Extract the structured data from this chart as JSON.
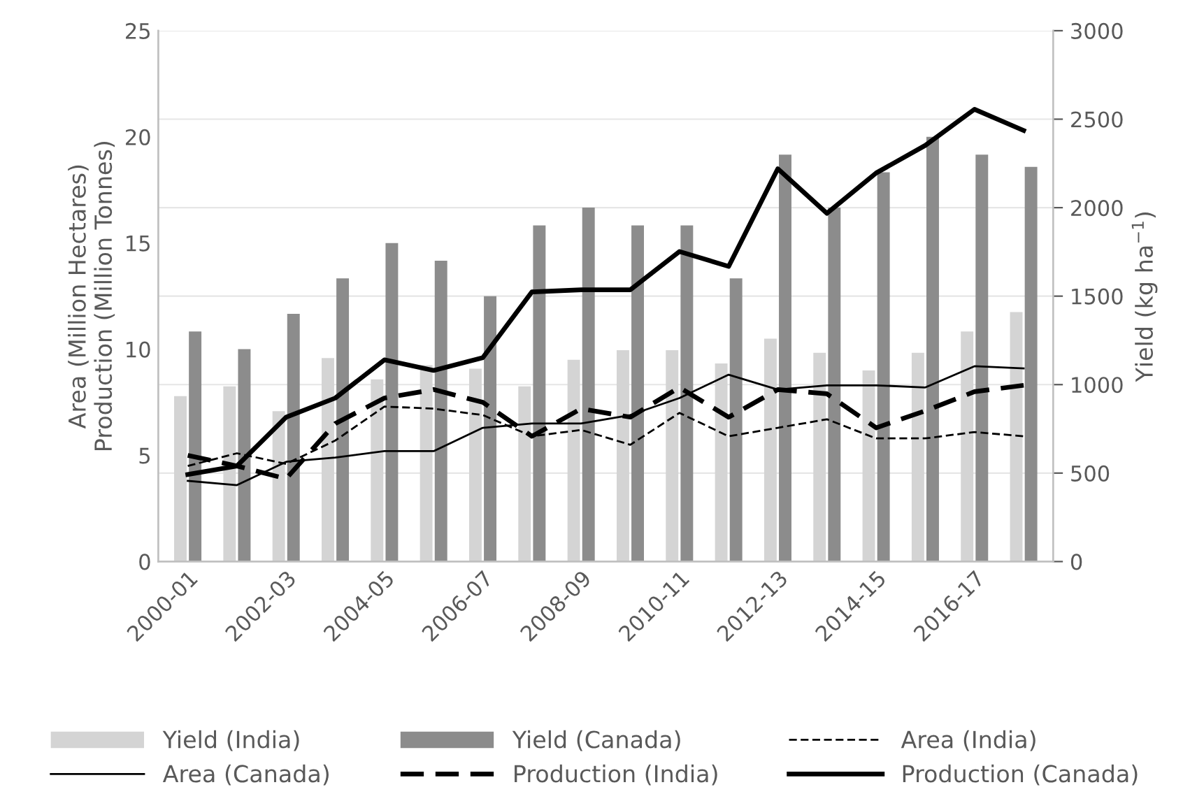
{
  "chart_data": {
    "type": "bar",
    "categories": [
      "2000-01",
      null,
      "2002-03",
      null,
      "2004-05",
      null,
      "2006-07",
      null,
      "2008-09",
      null,
      "2010-11",
      null,
      "2012-13",
      null,
      "2014-15",
      null,
      "2016-17",
      null
    ],
    "ylabel": "Area (Million Hectares)\nProduction (Million Tonnes)",
    "y2label": "Yield (kg ha$^{−1}$)",
    "ylim": [
      0,
      25
    ],
    "yticks": [
      0,
      5,
      10,
      15,
      20,
      25
    ],
    "y2lim": [
      0,
      3000
    ],
    "y2ticks": [
      0,
      500,
      1000,
      1500,
      2000,
      2500,
      3000
    ],
    "grid": "y",
    "legend": "bottom",
    "series": [
      {
        "name": "Yield (India)",
        "axis": "y2",
        "color": "#d4d4d4",
        "values": [
          935,
          990,
          850,
          1150,
          1030,
          1110,
          1090,
          990,
          1140,
          1195,
          1195,
          1120,
          1260,
          1180,
          1080,
          1180,
          1300,
          1410
        ]
      },
      {
        "name": "Yield (Canada)",
        "axis": "y2",
        "color": "#8c8c8c",
        "values": [
          1300,
          1200,
          1400,
          1600,
          1800,
          1700,
          1500,
          1900,
          2000,
          1900,
          1900,
          1600,
          2300,
          2000,
          2200,
          2400,
          2300,
          2230
        ]
      },
      {
        "name": "Area (India)",
        "type": "line",
        "color": "#000000",
        "line_style": "dashed",
        "values": [
          4.5,
          5.1,
          4.6,
          5.7,
          7.3,
          7.2,
          6.9,
          5.9,
          6.2,
          5.5,
          7.0,
          5.9,
          6.3,
          6.7,
          5.8,
          5.8,
          6.1,
          5.9
        ]
      },
      {
        "name": "Area (Canada)",
        "type": "line",
        "color": "#000000",
        "line_style": "solid",
        "values": [
          3.8,
          3.6,
          4.7,
          4.9,
          5.2,
          5.2,
          6.3,
          6.5,
          6.5,
          6.9,
          7.7,
          8.8,
          8.1,
          8.3,
          8.3,
          8.2,
          9.2,
          9.1
        ]
      },
      {
        "name": "Production (India)",
        "type": "line",
        "color": "#000000",
        "line_style": "dashed",
        "values": [
          5.0,
          4.5,
          3.9,
          6.5,
          7.7,
          8.1,
          7.5,
          5.9,
          7.2,
          6.8,
          8.2,
          6.8,
          8.1,
          7.9,
          6.3,
          7.1,
          8.0,
          8.3
        ]
      },
      {
        "name": "Production (Canada)",
        "type": "line",
        "color": "#000000",
        "line_style": "solid",
        "values": [
          4.1,
          4.5,
          6.8,
          7.7,
          9.5,
          9.0,
          9.6,
          12.7,
          12.8,
          12.8,
          14.6,
          13.9,
          18.5,
          16.4,
          18.3,
          19.6,
          21.3,
          20.3
        ]
      }
    ]
  }
}
